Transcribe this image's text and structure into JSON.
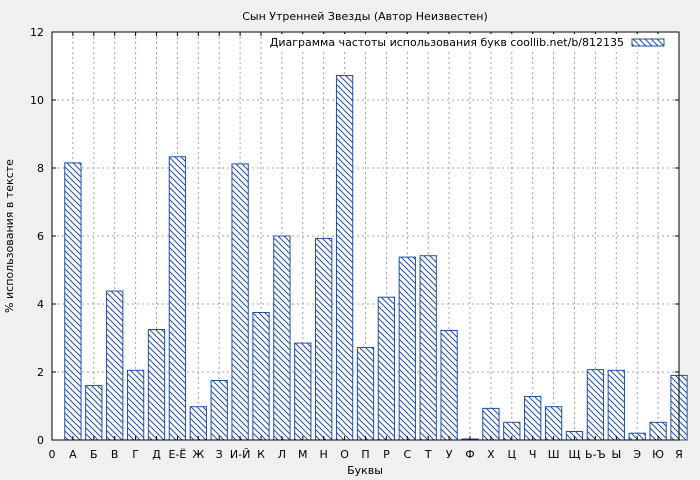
{
  "chart_data": {
    "type": "bar",
    "title": "Сын Утренней Звезды (Автор Неизвестен)",
    "xlabel": "Буквы",
    "ylabel": "% использования в тексте",
    "ylim": [
      0,
      12
    ],
    "yticks": [
      0,
      2,
      4,
      6,
      8,
      10,
      12
    ],
    "grid": true,
    "legend_position": "top-right",
    "x_tick_labels": [
      "0",
      "А",
      "Б",
      "В",
      "Г",
      "Д",
      "Е-Ё",
      "Ж",
      "З",
      "И-Й",
      "К",
      "Л",
      "М",
      "Н",
      "О",
      "П",
      "Р",
      "С",
      "Т",
      "У",
      "Ф",
      "Х",
      "Ц",
      "Ч",
      "Ш",
      "Щ",
      "Ь-Ъ",
      "Ы",
      "Э",
      "Ю",
      "Я"
    ],
    "categories": [
      "А",
      "Б",
      "В",
      "Г",
      "Д",
      "Е-Ё",
      "Ж",
      "З",
      "И-Й",
      "К",
      "Л",
      "М",
      "Н",
      "О",
      "П",
      "Р",
      "С",
      "Т",
      "У",
      "Ф",
      "Х",
      "Ц",
      "Ч",
      "Ш",
      "Щ",
      "Ь-Ъ",
      "Ы",
      "Э",
      "Ю",
      "Я"
    ],
    "series": [
      {
        "name": "Диаграмма частоты использования букв coollib.net/b/812135",
        "values": [
          8.15,
          1.6,
          4.38,
          2.05,
          3.25,
          8.33,
          0.98,
          1.75,
          8.12,
          3.75,
          6.0,
          2.85,
          5.93,
          10.72,
          2.72,
          4.2,
          5.38,
          5.42,
          3.22,
          0.03,
          0.93,
          0.52,
          1.28,
          0.98,
          0.25,
          2.07,
          2.05,
          0.2,
          0.52,
          1.9
        ]
      }
    ]
  },
  "colors": {
    "bar_stroke": "#1f4fa8",
    "grid": "#a0a0a0",
    "background": "#f0f0f0",
    "plot_background": "#ffffff"
  }
}
